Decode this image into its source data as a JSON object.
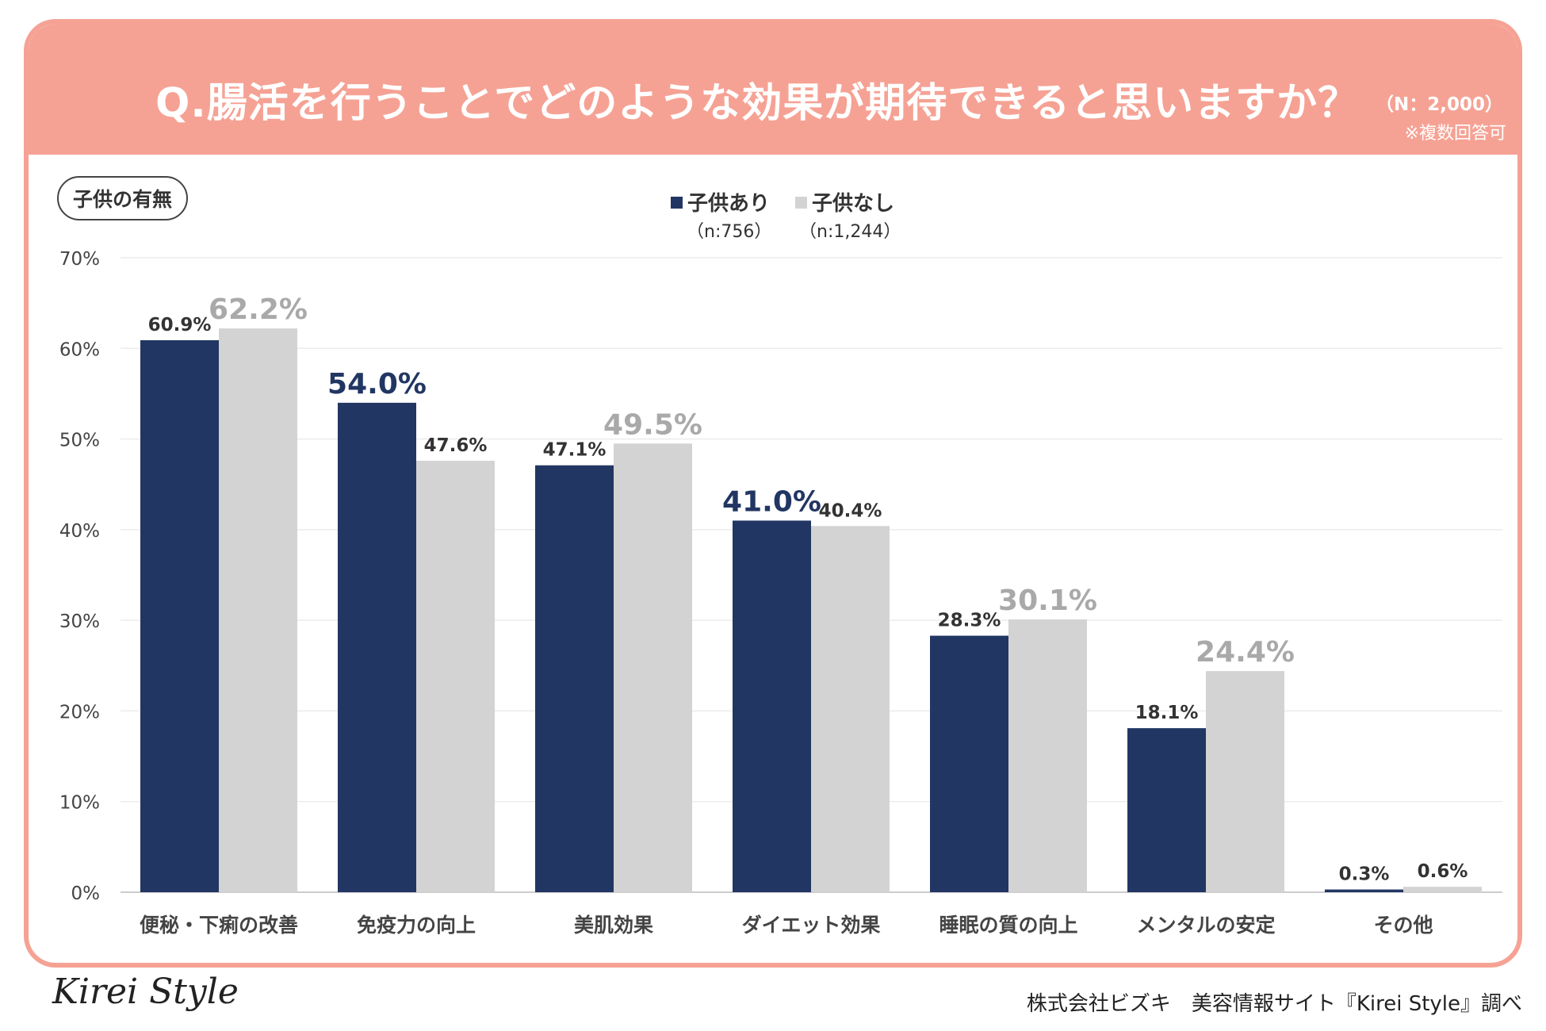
{
  "header": {
    "title": "Q.腸活を行うことでどのような効果が期待できると思いますか？",
    "sample": "（N：2,000）",
    "note": "※複数回答可"
  },
  "badge": "子供の有無",
  "legend": [
    {
      "label": "子供あり",
      "sub": "（n:756）"
    },
    {
      "label": "子供なし",
      "sub": "（n:1,244）"
    }
  ],
  "colors": {
    "accent": "#f5a294",
    "series_a": "#223663",
    "series_b": "#d3d3d3",
    "label_b_big": "#a9a9a9"
  },
  "chart_data": {
    "type": "bar",
    "title": "Q.腸活を行うことでどのような効果が期待できると思いますか？",
    "categories": [
      "便秘・下痢の改善",
      "免疫力の向上",
      "美肌効果",
      "ダイエット効果",
      "睡眠の質の向上",
      "メンタルの安定",
      "その他"
    ],
    "series": [
      {
        "name": "子供あり",
        "values": [
          60.9,
          54.0,
          47.1,
          41.0,
          28.3,
          18.1,
          0.3
        ]
      },
      {
        "name": "子供なし",
        "values": [
          62.2,
          47.6,
          49.5,
          40.4,
          30.1,
          24.4,
          0.6
        ]
      }
    ],
    "ylim": [
      0,
      70
    ],
    "yticks": [
      0,
      10,
      20,
      30,
      40,
      50,
      60,
      70
    ],
    "ytick_labels": [
      "0%",
      "10%",
      "20%",
      "30%",
      "40%",
      "50%",
      "60%",
      "70%"
    ],
    "value_labels": [
      [
        "60.9%",
        "54.0%",
        "47.1%",
        "41.0%",
        "28.3%",
        "18.1%",
        "0.3%"
      ],
      [
        "62.2%",
        "47.6%",
        "49.5%",
        "40.4%",
        "30.1%",
        "24.4%",
        "0.6%"
      ]
    ],
    "xlabel": "",
    "ylabel": "",
    "grid": true
  },
  "footer": {
    "logo": "Kirei Style",
    "credit": "株式会社ビズキ　美容情報サイト『Kirei Style』調べ"
  }
}
